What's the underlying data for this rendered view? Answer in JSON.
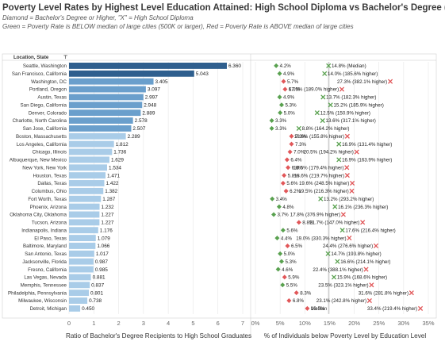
{
  "title": "Poverty Level Rates by Highest Level Education Attained: High School Diploma vs Bachelor's Degree (or Higher)",
  "subtitles": [
    "Diamond = Bachelor's Degree or Higher, \"X\" = High School Diploma",
    "Green = Poverty Rate is BELOW median of large cities (500K or larger), Red = Poverty Rate is ABOVE median of large cities"
  ],
  "colors": {
    "bar_dark": "#2f5f8e",
    "bar_mid": "#6a9fcc",
    "bar_light": "#a9cce8",
    "green": "#59a14f",
    "red": "#e15759",
    "median_line": "#aaaaaa",
    "grid": "#e6e6e6"
  },
  "chart_data": [
    {
      "type": "bar",
      "orientation": "horizontal",
      "row_header": "Location, State",
      "xlabel": "Ratio of Bachelor's Degree Recipients to High School Graduates",
      "xlim": [
        0,
        7
      ],
      "xticks": [
        0,
        1,
        2,
        3,
        4,
        5,
        6,
        7
      ],
      "categories": [
        "Seattle, Washington",
        "San Francisco, California",
        "Washington, DC",
        "Portland, Oregon",
        "Austin, Texas",
        "San Diego, California",
        "Denver, Colorado",
        "Charlotte, North Carolina",
        "San Jose, California",
        "Boston, Massachusetts",
        "Los Angeles, California",
        "Chicago, Illinois",
        "Albuquerque, New Mexico",
        "New York, New York",
        "Houston, Texas",
        "Dallas, Texas",
        "Columbus, Ohio",
        "Fort Worth, Texas",
        "Phoenix, Arizona",
        "Oklahoma City, Oklahoma",
        "Tucson, Arizona",
        "Indianapolis, Indiana",
        "El Paso, Texas",
        "Baltimore, Maryland",
        "San Antonio, Texas",
        "Jacksonville, Florida",
        "Fresno, California",
        "Las Vegas, Nevada",
        "Memphis, Tennessee",
        "Philadelphia, Pennsylvania",
        "Milwaukee, Wisconsin",
        "Detroit, Michigan"
      ],
      "values": [
        6.36,
        5.043,
        3.405,
        3.097,
        2.997,
        2.948,
        2.889,
        2.578,
        2.507,
        2.289,
        1.812,
        1.736,
        1.629,
        1.534,
        1.471,
        1.422,
        1.382,
        1.287,
        1.232,
        1.227,
        1.227,
        1.176,
        1.079,
        1.066,
        1.017,
        0.987,
        0.985,
        0.881,
        0.837,
        0.801,
        0.738,
        0.45
      ],
      "value_labels": [
        "6.360",
        "5.043",
        "3.405",
        "3.097",
        "2.997",
        "2.948",
        "2.889",
        "2.578",
        "2.507",
        "2.289",
        "1.812",
        "1.736",
        "1.629",
        "1.534",
        "1.471",
        "1.422",
        "1.382",
        "1.287",
        "1.232",
        "1.227",
        "1.227",
        "1.176",
        "1.079",
        "1.066",
        "1.017",
        "0.987",
        "0.985",
        "0.881",
        "0.837",
        "0.801",
        "0.738",
        "0.450"
      ]
    },
    {
      "type": "scatter",
      "xlabel": "% of Individuals below Poverty Level by Education Level",
      "xlim": [
        0,
        35
      ],
      "xticks": [
        0,
        5,
        10,
        15,
        20,
        25,
        30,
        35
      ],
      "xtick_labels": [
        "0%",
        "5%",
        "10%",
        "15%",
        "20%",
        "25%",
        "30%",
        "35%"
      ],
      "series": [
        {
          "name": "Bachelor's Degree or Higher",
          "marker": "diamond",
          "values": [
            4.2,
            4.9,
            5.7,
            6.0,
            4.9,
            5.3,
            5.0,
            3.3,
            3.3,
            7.3,
            7.3,
            7.0,
            6.4,
            6.6,
            5.8,
            5.6,
            6.2,
            3.4,
            4.8,
            3.7,
            8.8,
            5.6,
            4.4,
            6.5,
            5.0,
            5.3,
            4.6,
            5.9,
            5.5,
            8.3,
            6.8,
            10.5
          ],
          "status": [
            "below",
            "below",
            "above",
            "above",
            "below",
            "below",
            "below",
            "below",
            "below",
            "above",
            "above",
            "above",
            "above",
            "above",
            "above",
            "above",
            "above",
            "below",
            "below",
            "below",
            "above",
            "below",
            "below",
            "above",
            "below",
            "below",
            "below",
            "above",
            "below",
            "above",
            "above",
            "above"
          ],
          "labels": [
            "4.2%",
            "4.9%",
            "5.7%",
            "6.0%",
            "4.9%",
            "5.3%",
            "5.0%",
            "3.3%",
            "3.3%",
            "7.3%",
            "7.3%",
            "7.0%",
            "6.4%",
            "6.6%",
            "5.8%",
            "5.6%",
            "6.2%",
            "3.4%",
            "4.8%",
            "3.7%",
            "8.8%",
            "5.6%",
            "4.4%",
            "6.5%",
            "5.0%",
            "5.3%",
            "4.6%",
            "5.9%",
            "5.5%",
            "8.3%",
            "6.8%",
            "10.5%"
          ]
        },
        {
          "name": "High School Diploma",
          "marker": "x",
          "values": [
            14.8,
            14.0,
            27.3,
            17.5,
            13.7,
            15.2,
            12.5,
            13.6,
            8.8,
            18.6,
            16.9,
            20.5,
            16.9,
            18.5,
            18.6,
            19.6,
            19.5,
            13.2,
            16.1,
            17.8,
            21.7,
            17.6,
            19.0,
            24.4,
            14.7,
            16.6,
            22.4,
            15.9,
            23.5,
            31.6,
            23.1,
            33.4
          ],
          "status": [
            "below",
            "below",
            "above",
            "above",
            "below",
            "below",
            "below",
            "below",
            "below",
            "above",
            "below",
            "above",
            "below",
            "above",
            "above",
            "above",
            "above",
            "below",
            "below",
            "above",
            "above",
            "below",
            "above",
            "above",
            "below",
            "below",
            "above",
            "below",
            "above",
            "above",
            "above",
            "above"
          ],
          "labels": [
            "14.8% (Median)",
            "14.0% (185.6% higher)",
            "27.3% (382.1% higher)",
            "17.5% (189.0% higher)",
            "13.7% (182.3% higher)",
            "15.2% (185.9% higher)",
            "12.5% (150.9% higher)",
            "13.6% (317.1% higher)",
            "8.8% (164.2% higher)",
            "18.6% (155.8% higher)",
            "16.9% (131.4% higher)",
            "20.5% (194.2% higher)",
            "16.9% (163.9% higher)",
            "18.5% (179.4% higher)",
            "18.6% (219.7% higher)",
            "19.6% (248.5% higher)",
            "19.5% (216.3% higher)",
            "13.2% (293.2% higher)",
            "16.1% (236.3% higher)",
            "17.8% (376.9% higher)",
            "21.7% (147.0% higher)",
            "17.6% (216.4% higher)",
            "19.0% (330.3% higher)",
            "24.4% (276.6% higher)",
            "14.7% (193.8% higher)",
            "16.6% (214.1% higher)",
            "22.4% (388.1% higher)",
            "15.9% (168.6% higher)",
            "23.5% (323.1% higher)",
            "31.6% (281.8% higher)",
            "23.1% (242.8% higher)",
            "33.4% (219.4% higher)"
          ]
        }
      ],
      "median_label": "Median"
    }
  ]
}
